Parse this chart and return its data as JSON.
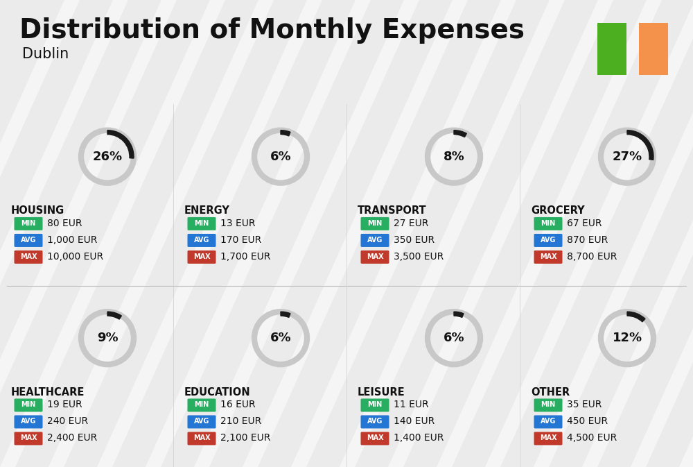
{
  "title": "Distribution of Monthly Expenses",
  "subtitle": "Dublin",
  "bg_color": "#ebebeb",
  "categories": [
    {
      "name": "HOUSING",
      "pct": 26,
      "min_val": "80 EUR",
      "avg_val": "1,000 EUR",
      "max_val": "10,000 EUR",
      "row": 0,
      "col": 0
    },
    {
      "name": "ENERGY",
      "pct": 6,
      "min_val": "13 EUR",
      "avg_val": "170 EUR",
      "max_val": "1,700 EUR",
      "row": 0,
      "col": 1
    },
    {
      "name": "TRANSPORT",
      "pct": 8,
      "min_val": "27 EUR",
      "avg_val": "350 EUR",
      "max_val": "3,500 EUR",
      "row": 0,
      "col": 2
    },
    {
      "name": "GROCERY",
      "pct": 27,
      "min_val": "67 EUR",
      "avg_val": "870 EUR",
      "max_val": "8,700 EUR",
      "row": 0,
      "col": 3
    },
    {
      "name": "HEALTHCARE",
      "pct": 9,
      "min_val": "19 EUR",
      "avg_val": "240 EUR",
      "max_val": "2,400 EUR",
      "row": 1,
      "col": 0
    },
    {
      "name": "EDUCATION",
      "pct": 6,
      "min_val": "16 EUR",
      "avg_val": "210 EUR",
      "max_val": "2,100 EUR",
      "row": 1,
      "col": 1
    },
    {
      "name": "LEISURE",
      "pct": 6,
      "min_val": "11 EUR",
      "avg_val": "140 EUR",
      "max_val": "1,400 EUR",
      "row": 1,
      "col": 2
    },
    {
      "name": "OTHER",
      "pct": 12,
      "min_val": "35 EUR",
      "avg_val": "450 EUR",
      "max_val": "4,500 EUR",
      "row": 1,
      "col": 3
    }
  ],
  "min_color": "#27ae60",
  "avg_color": "#2476d4",
  "max_color": "#c0392b",
  "arc_dark": "#1a1a1a",
  "arc_light": "#c8c8c8",
  "text_dark": "#111111",
  "ireland_green": "#4caf20",
  "ireland_orange": "#f4914a",
  "stripe_color": "#ffffff",
  "stripe_alpha": 0.55
}
